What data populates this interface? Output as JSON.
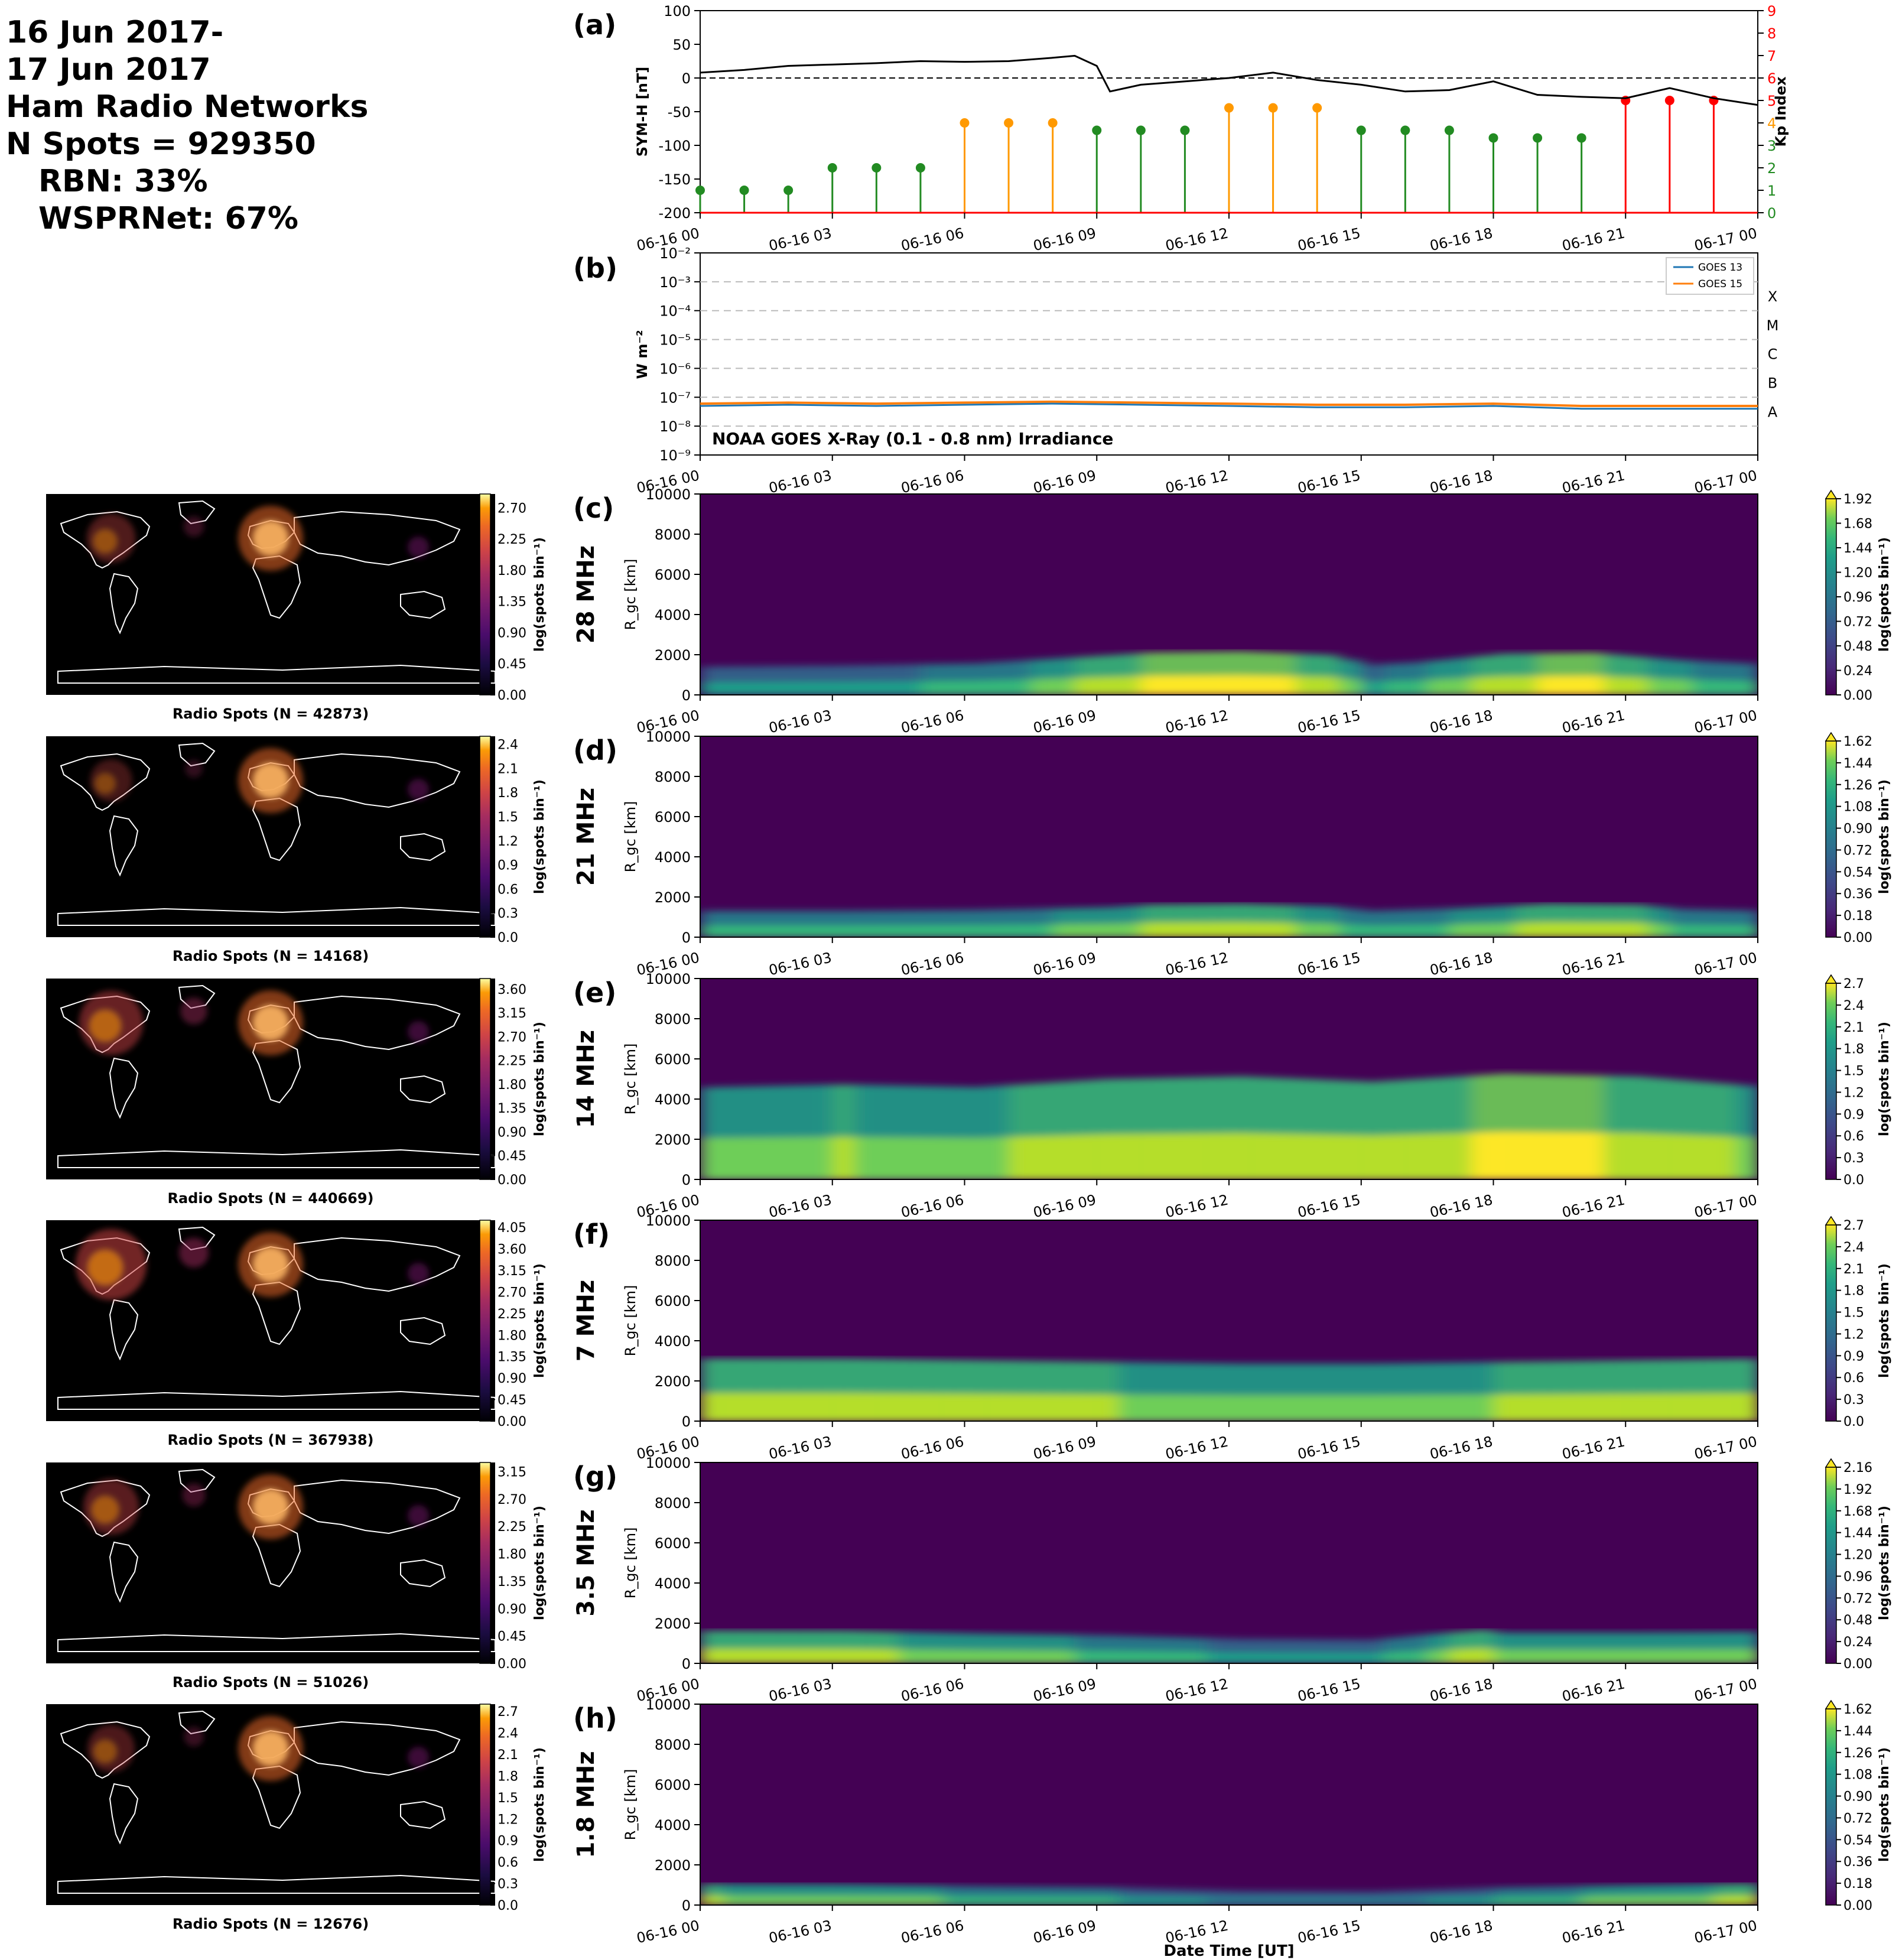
{
  "header": {
    "lines": [
      "16 Jun 2017-",
      "17 Jun 2017",
      "Ham Radio Networks",
      "N Spots = 929350",
      "RBN: 33%",
      "WSPRNet: 67%"
    ]
  },
  "time_ticks": [
    "06-16 00",
    "06-16 03",
    "06-16 06",
    "06-16 09",
    "06-16 12",
    "06-16 15",
    "06-16 18",
    "06-16 21",
    "06-17 00"
  ],
  "xlabel": "Date Time [UT]",
  "colors": {
    "symh": "#000000",
    "goes13": "#1f77b4",
    "goes15": "#ff7f0e",
    "kp_low": "#228b22",
    "kp_mid": "#ff9900",
    "kp_high": "#ff0000"
  },
  "chart_data": [
    {
      "panel": "(a)",
      "type": "line",
      "ylabel": "SYM-H [nT]",
      "y2label": "Kp Index",
      "ylim": [
        -200,
        100
      ],
      "y2lim": [
        0,
        9
      ],
      "yticks": [
        "100",
        "50",
        "0",
        "-50",
        "-100",
        "-150",
        "-200"
      ],
      "y2ticks": [
        "9",
        "8",
        "7",
        "6",
        "5",
        "4",
        "3",
        "2",
        "1",
        "0"
      ],
      "symh_series": {
        "x_hours": [
          0,
          1,
          2,
          3,
          4,
          5,
          6,
          7,
          8,
          8.5,
          9,
          9.3,
          10,
          11,
          12,
          13,
          14,
          15,
          16,
          17,
          18,
          19,
          20,
          21,
          22,
          23,
          24
        ],
        "values": [
          8,
          12,
          18,
          20,
          22,
          25,
          24,
          25,
          30,
          33,
          18,
          -20,
          -10,
          -5,
          0,
          8,
          -3,
          -10,
          -20,
          -18,
          -5,
          -25,
          -28,
          -30,
          -15,
          -30,
          -40
        ]
      },
      "kp": {
        "x_hours": [
          0,
          1,
          2,
          3,
          4,
          5,
          6,
          7,
          8,
          9,
          10,
          11,
          12,
          13,
          14,
          15,
          16,
          17,
          18,
          19,
          20,
          21,
          22,
          23
        ],
        "values": [
          1,
          1,
          1,
          2,
          2,
          2,
          4,
          4,
          4,
          3.67,
          3.67,
          3.67,
          4.67,
          4.67,
          4.67,
          3.67,
          3.67,
          3.67,
          3.33,
          3.33,
          3.33,
          5,
          5,
          5
        ]
      }
    },
    {
      "panel": "(b)",
      "type": "line",
      "log_scale": true,
      "ylabel": "W m⁻²",
      "ylim": [
        1e-09,
        0.01
      ],
      "yticks": [
        "10⁻²",
        "10⁻³",
        "10⁻⁴",
        "10⁻⁵",
        "10⁻⁶",
        "10⁻⁷",
        "10⁻⁸",
        "10⁻⁹"
      ],
      "classes": [
        "X",
        "M",
        "C",
        "B",
        "A"
      ],
      "annotation": "NOAA GOES X-Ray (0.1 - 0.8 nm) Irradiance",
      "series": [
        {
          "name": "GOES 13",
          "x_hours": [
            0,
            2,
            4,
            6,
            8,
            10,
            12,
            14,
            16,
            18,
            20,
            22,
            24
          ],
          "values": [
            5e-08,
            5.5e-08,
            5e-08,
            5.5e-08,
            6e-08,
            5.5e-08,
            5e-08,
            4.5e-08,
            4.5e-08,
            5e-08,
            4e-08,
            4e-08,
            4e-08
          ]
        },
        {
          "name": "GOES 15",
          "x_hours": [
            0,
            2,
            4,
            6,
            8,
            10,
            12,
            14,
            16,
            18,
            20,
            22,
            24
          ],
          "values": [
            6e-08,
            6.5e-08,
            6e-08,
            6.5e-08,
            7e-08,
            6.5e-08,
            6e-08,
            5.5e-08,
            5.5e-08,
            6e-08,
            5e-08,
            5e-08,
            5e-08
          ]
        }
      ]
    },
    {
      "panel": "(c)",
      "band": "28 MHz",
      "type": "heatmap",
      "map_label": "Radio Spots (N = 42873)",
      "map_ticks": [
        "2.70",
        "2.25",
        "1.80",
        "1.35",
        "0.90",
        "0.45",
        "0.00"
      ],
      "map_max": 2.9,
      "hm_ticks": [
        "1.92",
        "1.68",
        "1.44",
        "1.20",
        "0.96",
        "0.72",
        "0.48",
        "0.24",
        "0.00"
      ],
      "hm_max": 1.92,
      "profile": {
        "hours": [
          0,
          3,
          6,
          8,
          10,
          12,
          14,
          15,
          16,
          18,
          20,
          22,
          24
        ],
        "values": [
          0.3,
          0.35,
          0.45,
          0.7,
          0.95,
          1.0,
          0.85,
          0.4,
          0.5,
          0.9,
          0.95,
          0.6,
          0.4
        ]
      },
      "extent_km": 1800
    },
    {
      "panel": "(d)",
      "band": "21 MHz",
      "type": "heatmap",
      "map_label": "Radio Spots (N = 14168)",
      "map_ticks": [
        "2.4",
        "2.1",
        "1.8",
        "1.5",
        "1.2",
        "0.9",
        "0.6",
        "0.3",
        "0.0"
      ],
      "map_max": 2.5,
      "hm_ticks": [
        "1.62",
        "1.44",
        "1.26",
        "1.08",
        "0.90",
        "0.72",
        "0.54",
        "0.36",
        "0.18",
        "0.00"
      ],
      "hm_max": 1.62,
      "profile": {
        "hours": [
          0,
          3,
          6,
          9,
          10,
          12,
          14,
          15,
          17,
          19,
          21,
          22,
          24
        ],
        "values": [
          0.45,
          0.45,
          0.5,
          0.65,
          0.8,
          0.85,
          0.7,
          0.45,
          0.6,
          0.85,
          0.8,
          0.55,
          0.45
        ]
      },
      "extent_km": 1500
    },
    {
      "panel": "(e)",
      "band": "14 MHz",
      "type": "heatmap",
      "map_label": "Radio Spots (N = 440669)",
      "map_ticks": [
        "3.60",
        "3.15",
        "2.70",
        "2.25",
        "1.80",
        "1.35",
        "0.90",
        "0.45",
        "0.00"
      ],
      "map_max": 3.8,
      "hm_ticks": [
        "2.7",
        "2.4",
        "2.1",
        "1.8",
        "1.5",
        "1.2",
        "0.9",
        "0.6",
        "0.3",
        "0.0"
      ],
      "hm_max": 2.7,
      "profile": {
        "hours": [
          0,
          3,
          6,
          9,
          12,
          15,
          18,
          21,
          24
        ],
        "values": [
          0.7,
          0.75,
          0.7,
          0.85,
          0.9,
          0.8,
          0.95,
          0.9,
          0.7
        ]
      },
      "extent_km": 4500
    },
    {
      "panel": "(f)",
      "band": "7 MHz",
      "type": "heatmap",
      "map_label": "Radio Spots (N = 367938)",
      "map_ticks": [
        "4.05",
        "3.60",
        "3.15",
        "2.70",
        "2.25",
        "1.80",
        "1.35",
        "0.90",
        "0.45",
        "0.00"
      ],
      "map_max": 4.2,
      "hm_ticks": [
        "2.7",
        "2.4",
        "2.1",
        "1.8",
        "1.5",
        "1.2",
        "0.9",
        "0.6",
        "0.3",
        "0.0"
      ],
      "hm_max": 2.7,
      "profile": {
        "hours": [
          0,
          3,
          6,
          9,
          12,
          15,
          18,
          21,
          24
        ],
        "values": [
          0.85,
          0.85,
          0.8,
          0.75,
          0.7,
          0.7,
          0.75,
          0.8,
          0.85
        ]
      },
      "extent_km": 2800
    },
    {
      "panel": "(g)",
      "band": "3.5 MHz",
      "type": "heatmap",
      "map_label": "Radio Spots (N = 51026)",
      "map_ticks": [
        "3.15",
        "2.70",
        "2.25",
        "1.80",
        "1.35",
        "0.90",
        "0.45",
        "0.00"
      ],
      "map_max": 3.3,
      "hm_ticks": [
        "2.16",
        "1.92",
        "1.68",
        "1.44",
        "1.20",
        "0.96",
        "0.72",
        "0.48",
        "0.24",
        "0.00"
      ],
      "hm_max": 2.16,
      "profile": {
        "hours": [
          0,
          3,
          6,
          9,
          12,
          15,
          16,
          17.5,
          18,
          21,
          24
        ],
        "values": [
          0.8,
          0.8,
          0.65,
          0.55,
          0.35,
          0.3,
          0.55,
          0.85,
          0.7,
          0.7,
          0.75
        ]
      },
      "extent_km": 1500
    },
    {
      "panel": "(h)",
      "band": "1.8 MHz",
      "type": "heatmap",
      "map_label": "Radio Spots (N = 12676)",
      "map_ticks": [
        "2.7",
        "2.4",
        "2.1",
        "1.8",
        "1.5",
        "1.2",
        "0.9",
        "0.6",
        "0.3",
        "0.0"
      ],
      "map_max": 2.8,
      "hm_ticks": [
        "1.62",
        "1.44",
        "1.26",
        "1.08",
        "0.90",
        "0.72",
        "0.54",
        "0.36",
        "0.18",
        "0.00"
      ],
      "hm_max": 1.62,
      "profile": {
        "hours": [
          0,
          3,
          6,
          9,
          12,
          15,
          18,
          21,
          24
        ],
        "values": [
          0.75,
          0.7,
          0.55,
          0.45,
          0.15,
          0.1,
          0.45,
          0.65,
          0.8
        ]
      },
      "extent_km": 1000
    }
  ],
  "heatmap_axis": {
    "ylabel": "R_gc [km]",
    "yticks": [
      "10000",
      "8000",
      "6000",
      "4000",
      "2000",
      "0"
    ]
  },
  "colorbar_label": "log(spots bin⁻¹)"
}
